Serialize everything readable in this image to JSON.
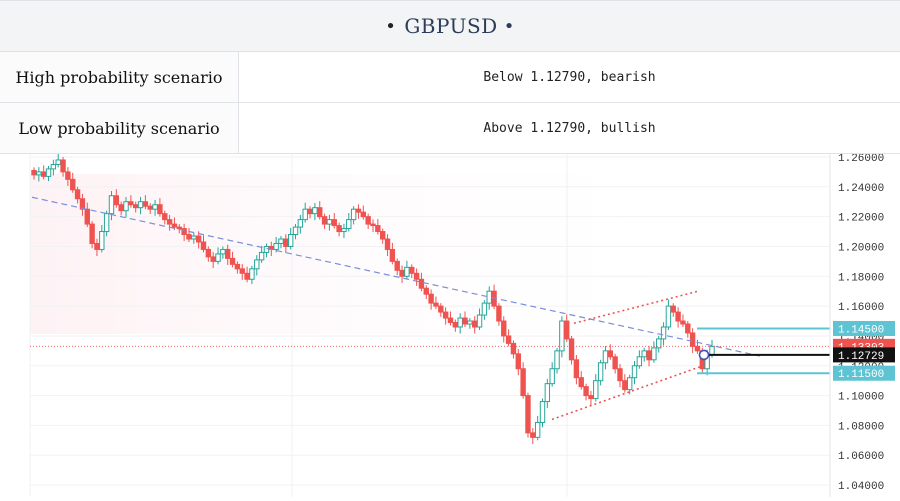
{
  "header": {
    "title": "GBPUSD",
    "bullet": "•"
  },
  "scenarios": [
    {
      "label": "High probability scenario",
      "value": "Below 1.12790, bearish"
    },
    {
      "label": "Low probability scenario",
      "value": "Above 1.12790, bullish"
    }
  ],
  "colors": {
    "up": "#26a69a",
    "down": "#ef5350",
    "trendline": "#7b8fd8",
    "channel": "#ef5350",
    "level_box": "#5ec4d4",
    "current_price_box": "#ef5350",
    "key_level_box": "#111111"
  },
  "chart_data": {
    "type": "candlestick",
    "symbol": "GBPUSD",
    "ylim": [
      1.032,
      1.262
    ],
    "y_ticks": [
      "1.26000",
      "1.24000",
      "1.22000",
      "1.20000",
      "1.18000",
      "1.16000",
      "1.14000",
      "1.12000",
      "1.10000",
      "1.08000",
      "1.06000",
      "1.04000"
    ],
    "grid": true,
    "candle_closes": [
      1.248,
      1.25,
      1.247,
      1.252,
      1.255,
      1.258,
      1.25,
      1.245,
      1.238,
      1.232,
      1.225,
      1.215,
      1.202,
      1.198,
      1.21,
      1.222,
      1.234,
      1.228,
      1.224,
      1.23,
      1.228,
      1.226,
      1.23,
      1.227,
      1.225,
      1.228,
      1.222,
      1.218,
      1.215,
      1.213,
      1.212,
      1.208,
      1.205,
      1.207,
      1.203,
      1.198,
      1.193,
      1.19,
      1.195,
      1.198,
      1.192,
      1.188,
      1.185,
      1.182,
      1.178,
      1.185,
      1.191,
      1.196,
      1.2,
      1.198,
      1.202,
      1.205,
      1.2,
      1.208,
      1.213,
      1.218,
      1.225,
      1.222,
      1.226,
      1.22,
      1.215,
      1.218,
      1.214,
      1.21,
      1.212,
      1.218,
      1.225,
      1.223,
      1.22,
      1.215,
      1.214,
      1.21,
      1.205,
      1.198,
      1.19,
      1.184,
      1.18,
      1.186,
      1.182,
      1.178,
      1.172,
      1.168,
      1.162,
      1.16,
      1.156,
      1.152,
      1.149,
      1.146,
      1.152,
      1.148,
      1.15,
      1.146,
      1.154,
      1.162,
      1.17,
      1.16,
      1.15,
      1.14,
      1.135,
      1.128,
      1.118,
      1.1,
      1.075,
      1.072,
      1.082,
      1.096,
      1.108,
      1.118,
      1.13,
      1.15,
      1.138,
      1.124,
      1.112,
      1.106,
      1.1,
      1.098,
      1.11,
      1.122,
      1.13,
      1.126,
      1.118,
      1.11,
      1.104,
      1.112,
      1.12,
      1.126,
      1.13,
      1.124,
      1.132,
      1.138,
      1.146,
      1.16,
      1.156,
      1.15,
      1.148,
      1.142,
      1.133,
      1.13,
      1.118,
      1.1275,
      1.133
    ],
    "horizontal_levels": [
      {
        "label": "1.14500",
        "value": 1.145,
        "role": "resistance"
      },
      {
        "label": "1.13303",
        "value": 1.13303,
        "role": "current price"
      },
      {
        "label": "1.12729",
        "value": 1.12729,
        "role": "key level"
      },
      {
        "label": "1.11500",
        "value": 1.115,
        "role": "support"
      }
    ],
    "overlays": [
      "descending dashed trendline",
      "dotted ascending price channel",
      "dotted current price line"
    ]
  }
}
